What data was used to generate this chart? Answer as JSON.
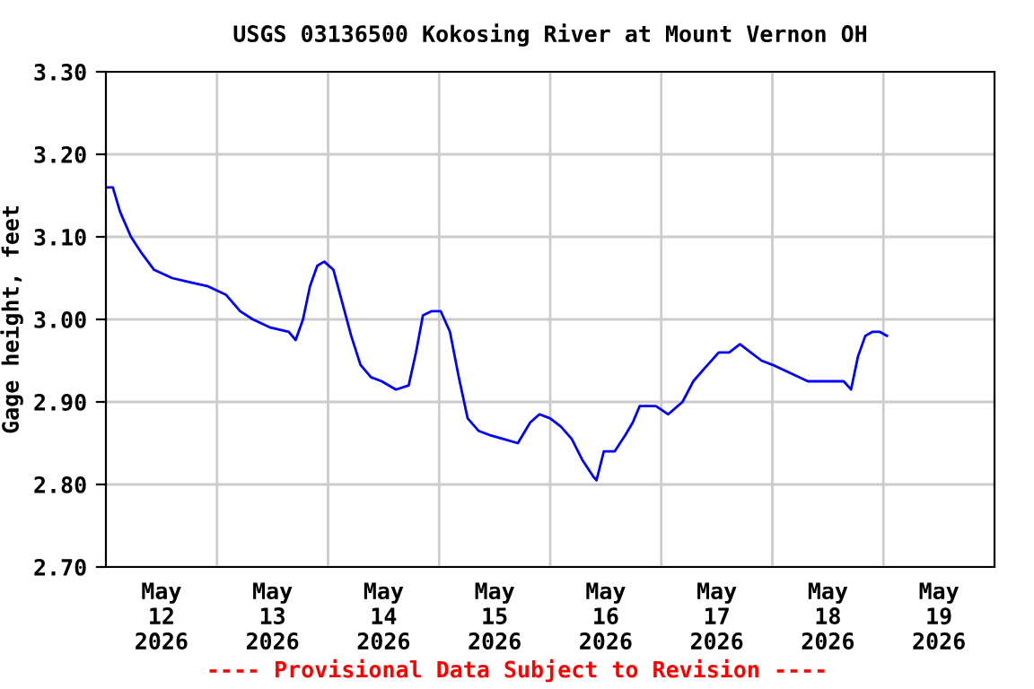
{
  "chart_data": {
    "type": "line",
    "title": "USGS 03136500 Kokosing River at Mount Vernon OH",
    "ylabel": "Gage height, feet",
    "annotations": [
      "---- Provisional Data Subject to Revision ----"
    ],
    "x": [
      "2026-05-12T00:20",
      "2026-05-12T01:30",
      "2026-05-12T03:05",
      "2026-05-12T05:25",
      "2026-05-12T07:45",
      "2026-05-12T10:25",
      "2026-05-12T14:20",
      "2026-05-12T18:10",
      "2026-05-12T22:05",
      "2026-05-13T01:55",
      "2026-05-13T05:00",
      "2026-05-13T07:45",
      "2026-05-13T11:35",
      "2026-05-13T15:30",
      "2026-05-13T17:00",
      "2026-05-13T18:35",
      "2026-05-13T20:05",
      "2026-05-13T21:40",
      "2026-05-13T23:10",
      "2026-05-14T01:10",
      "2026-05-14T03:05",
      "2026-05-14T05:00",
      "2026-05-14T07:00",
      "2026-05-14T09:15",
      "2026-05-14T11:35",
      "2026-05-14T14:40",
      "2026-05-14T17:25",
      "2026-05-14T19:00",
      "2026-05-14T20:30",
      "2026-05-14T22:25",
      "2026-05-15T00:20",
      "2026-05-15T02:20",
      "2026-05-15T04:15",
      "2026-05-15T06:10",
      "2026-05-15T08:30",
      "2026-05-15T10:50",
      "2026-05-15T13:55",
      "2026-05-15T17:00",
      "2026-05-15T19:40",
      "2026-05-15T21:40",
      "2026-05-16T00:00",
      "2026-05-16T02:20",
      "2026-05-16T04:40",
      "2026-05-16T06:55",
      "2026-05-16T09:15",
      "2026-05-16T10:00",
      "2026-05-16T11:35",
      "2026-05-16T13:55",
      "2026-05-16T16:15",
      "2026-05-16T17:50",
      "2026-05-16T19:20",
      "2026-05-16T22:50",
      "2026-05-17T01:30",
      "2026-05-17T04:35",
      "2026-05-17T06:55",
      "2026-05-17T09:15",
      "2026-05-17T12:25",
      "2026-05-17T14:40",
      "2026-05-17T17:00",
      "2026-05-17T19:20",
      "2026-05-17T21:40",
      "2026-05-18T00:00",
      "2026-05-18T03:50",
      "2026-05-18T07:40",
      "2026-05-18T11:35",
      "2026-05-18T15:25",
      "2026-05-18T17:00",
      "2026-05-18T18:30",
      "2026-05-18T20:05",
      "2026-05-18T21:40",
      "2026-05-18T23:10",
      "2026-05-19T00:45"
    ],
    "series": [
      {
        "color": "#0000ff",
        "values": [
          3.16,
          3.16,
          3.13,
          3.1,
          3.08,
          3.06,
          3.05,
          3.045,
          3.04,
          3.03,
          3.01,
          3.0,
          2.99,
          2.985,
          2.975,
          3.0,
          3.04,
          3.065,
          3.07,
          3.06,
          3.02,
          2.98,
          2.945,
          2.93,
          2.925,
          2.915,
          2.92,
          2.96,
          3.005,
          3.01,
          3.01,
          2.985,
          2.93,
          2.88,
          2.865,
          2.86,
          2.855,
          2.85,
          2.875,
          2.885,
          2.88,
          2.87,
          2.855,
          2.83,
          2.81,
          2.805,
          2.84,
          2.84,
          2.86,
          2.875,
          2.895,
          2.895,
          2.885,
          2.9,
          2.925,
          2.94,
          2.96,
          2.96,
          2.97,
          2.96,
          2.95,
          2.945,
          2.935,
          2.925,
          2.925,
          2.925,
          2.915,
          2.955,
          2.98,
          2.985,
          2.985,
          2.98
        ]
      }
    ],
    "xlim": [
      "2026-05-12T00:00",
      "2026-05-20T00:00"
    ],
    "xticks": [
      {
        "value": "2026-05-12T12:00",
        "label": "May\n12\n2026"
      },
      {
        "value": "2026-05-13T00:00",
        "label": null
      },
      {
        "value": "2026-05-13T12:00",
        "label": "May\n13\n2026"
      },
      {
        "value": "2026-05-14T00:00",
        "label": null
      },
      {
        "value": "2026-05-14T12:00",
        "label": "May\n14\n2026"
      },
      {
        "value": "2026-05-15T00:00",
        "label": null
      },
      {
        "value": "2026-05-15T12:00",
        "label": "May\n15\n2026"
      },
      {
        "value": "2026-05-16T00:00",
        "label": null
      },
      {
        "value": "2026-05-16T12:00",
        "label": "May\n16\n2026"
      },
      {
        "value": "2026-05-17T00:00",
        "label": null
      },
      {
        "value": "2026-05-17T12:00",
        "label": "May\n17\n2026"
      },
      {
        "value": "2026-05-18T00:00",
        "label": null
      },
      {
        "value": "2026-05-18T12:00",
        "label": "May\n18\n2026"
      },
      {
        "value": "2026-05-19T00:00",
        "label": null
      },
      {
        "value": "2026-05-19T12:00",
        "label": "May\n19\n2026"
      }
    ],
    "ylim": [
      2.7,
      3.3
    ],
    "yticks": [
      {
        "value": 2.7,
        "label": "2.70"
      },
      {
        "value": 2.8,
        "label": "2.80"
      },
      {
        "value": 2.9,
        "label": "2.90"
      },
      {
        "value": 3.0,
        "label": "3.00"
      },
      {
        "value": 3.1,
        "label": "3.10"
      },
      {
        "value": 3.2,
        "label": "3.20"
      },
      {
        "value": 3.3,
        "label": "3.30"
      }
    ],
    "grid": true,
    "legend": false,
    "marker": "none",
    "line_style": "solid"
  }
}
